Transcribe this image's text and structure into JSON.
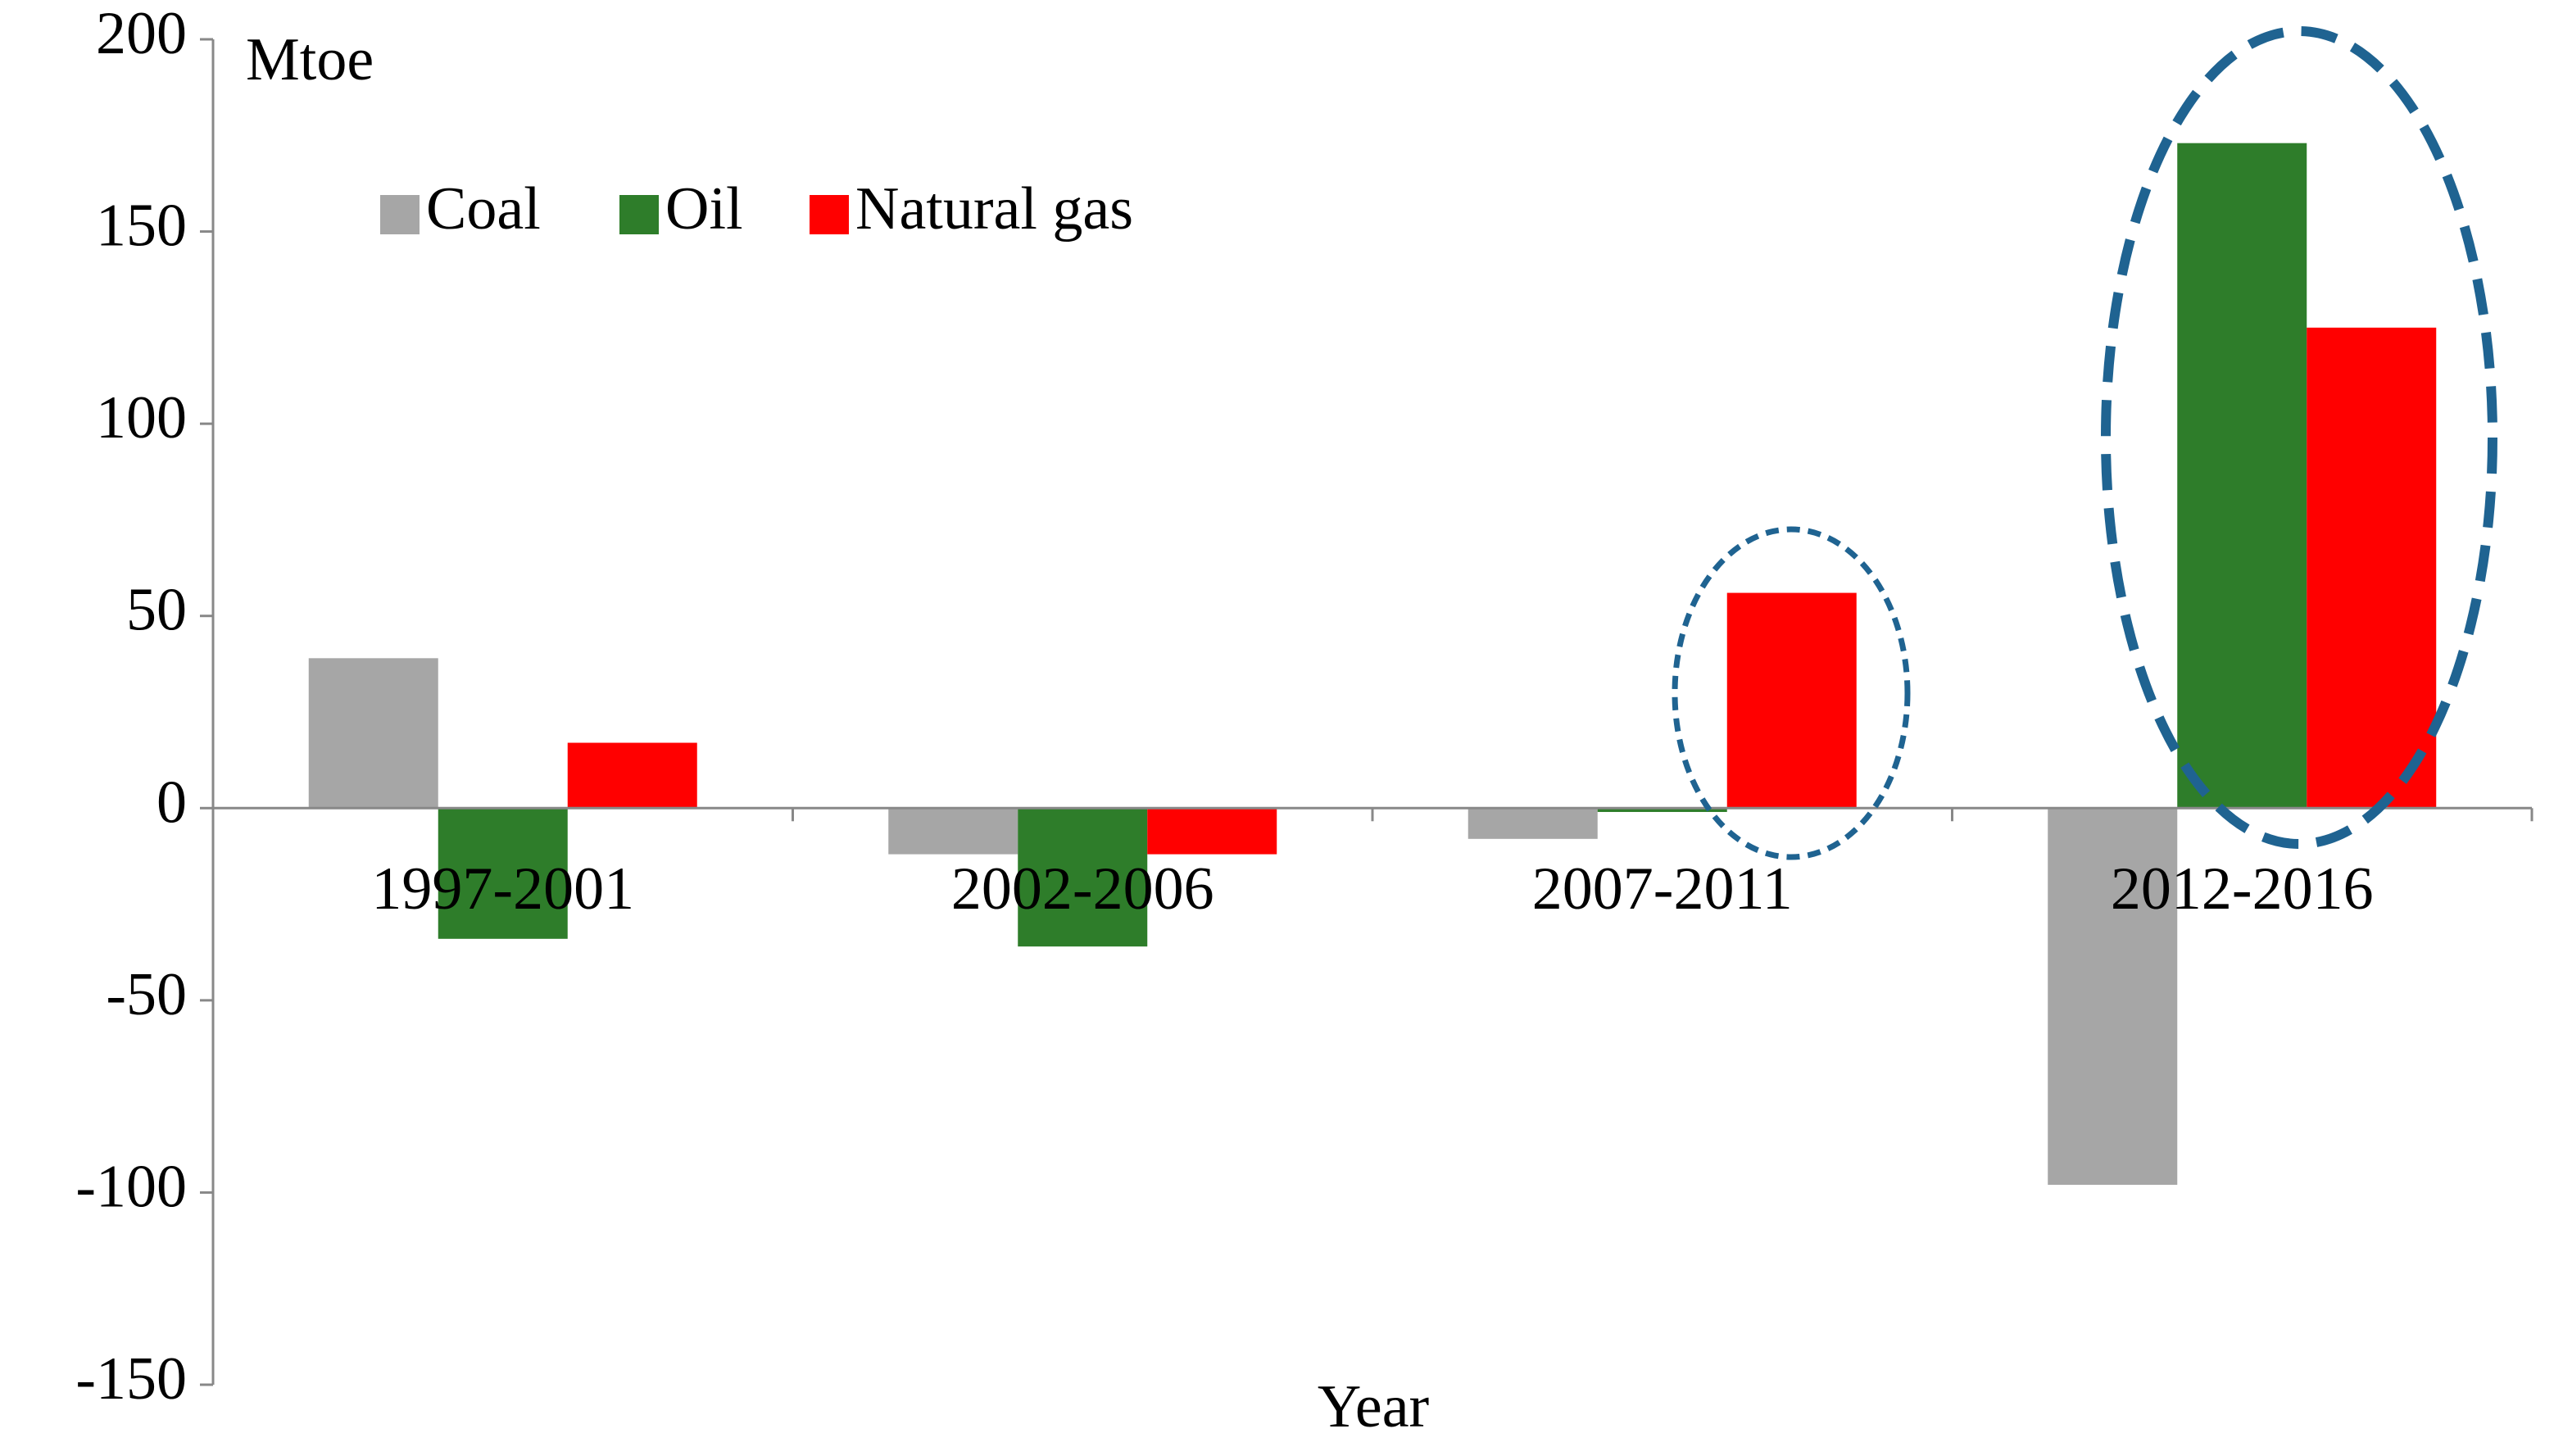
{
  "chart_data": {
    "type": "bar",
    "y_label": "Mtoe",
    "x_label": "Year",
    "categories": [
      "1997-2001",
      "2002-2006",
      "2007-2011",
      "2012-2016"
    ],
    "series": [
      {
        "name": "Coal",
        "color": "#a6a6a6",
        "values": [
          39,
          -12,
          -8,
          -98
        ]
      },
      {
        "name": "Oil",
        "color": "#2e7d2a",
        "values": [
          -34,
          -36,
          -1,
          173
        ]
      },
      {
        "name": "Natural gas",
        "color": "#ff0000",
        "values": [
          17,
          -12,
          56,
          125
        ]
      }
    ],
    "ylim": [
      -150,
      200
    ],
    "yticks": [
      -150,
      -100,
      -50,
      0,
      50,
      100,
      150,
      200
    ],
    "grid": false,
    "legend": "upper left"
  }
}
